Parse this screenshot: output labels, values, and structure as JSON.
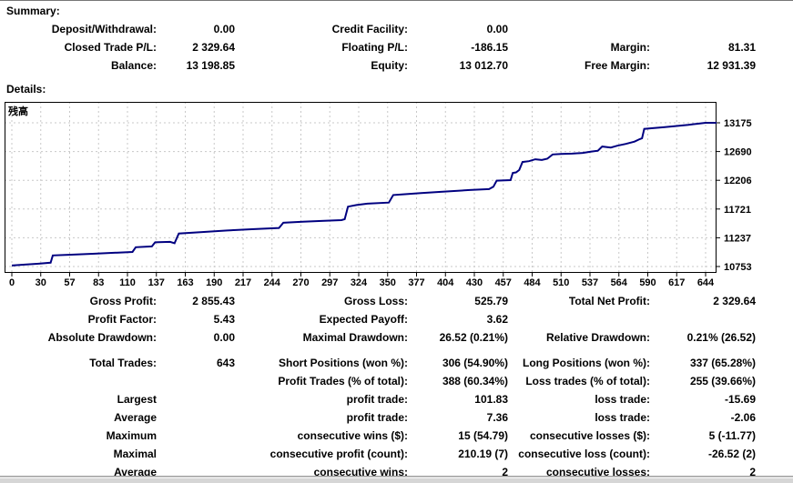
{
  "summary": {
    "heading": "Summary:",
    "rows": [
      {
        "l1": "Deposit/Withdrawal:",
        "v1": "0.00",
        "l2": "Credit Facility:",
        "v2": "0.00",
        "l3": "",
        "v3": ""
      },
      {
        "l1": "Closed Trade P/L:",
        "v1": "2 329.64",
        "l2": "Floating P/L:",
        "v2": "-186.15",
        "l3": "Margin:",
        "v3": "81.31"
      },
      {
        "l1": "Balance:",
        "v1": "13 198.85",
        "l2": "Equity:",
        "v2": "13 012.70",
        "l3": "Free Margin:",
        "v3": "12 931.39"
      }
    ]
  },
  "details": {
    "heading": "Details:",
    "rows": [
      {
        "l1": "Gross Profit:",
        "v1": "2 855.43",
        "l2": "Gross Loss:",
        "v2": "525.79",
        "l3": "Total Net Profit:",
        "v3": "2 329.64"
      },
      {
        "l1": "Profit Factor:",
        "v1": "5.43",
        "l2": "Expected Payoff:",
        "v2": "3.62",
        "l3": "",
        "v3": ""
      },
      {
        "l1": "Absolute Drawdown:",
        "v1": "0.00",
        "l2": "Maximal Drawdown:",
        "v2": "26.52 (0.21%)",
        "l3": "Relative Drawdown:",
        "v3": "0.21% (26.52)"
      },
      {
        "gap": true,
        "l1": "Total Trades:",
        "v1": "643",
        "l2": "Short Positions (won %):",
        "v2": "306 (54.90%)",
        "l3": "Long Positions (won %):",
        "v3": "337 (65.28%)"
      },
      {
        "l1": "",
        "v1": "",
        "l2": "Profit Trades (% of total):",
        "v2": "388 (60.34%)",
        "l3": "Loss trades (% of total):",
        "v3": "255 (39.66%)"
      },
      {
        "l1": "Largest",
        "v1": "",
        "l2": "profit trade:",
        "v2": "101.83",
        "l3": "loss trade:",
        "v3": "-15.69"
      },
      {
        "l1": "Average",
        "v1": "",
        "l2": "profit trade:",
        "v2": "7.36",
        "l3": "loss trade:",
        "v3": "-2.06"
      },
      {
        "l1": "Maximum",
        "v1": "",
        "l2": "consecutive wins ($):",
        "v2": "15 (54.79)",
        "l3": "consecutive losses ($):",
        "v3": "5 (-11.77)"
      },
      {
        "l1": "Maximal",
        "v1": "",
        "l2": "consecutive profit (count):",
        "v2": "210.19 (7)",
        "l3": "consecutive loss (count):",
        "v3": "-26.52 (2)"
      },
      {
        "l1": "Average",
        "v1": "",
        "l2": "consecutive wins:",
        "v2": "2",
        "l3": "consecutive losses:",
        "v3": "2"
      }
    ]
  },
  "chart_data": {
    "type": "line",
    "title": "残高",
    "legend": "残高",
    "xlabel": "",
    "ylabel": "",
    "x_ticks": [
      0,
      30,
      57,
      83,
      110,
      137,
      163,
      190,
      217,
      244,
      270,
      297,
      324,
      350,
      377,
      404,
      430,
      457,
      484,
      510,
      537,
      564,
      590,
      617,
      644
    ],
    "y_ticks": [
      13175,
      12690,
      12206,
      11721,
      11237,
      10753
    ],
    "xlim": [
      0,
      644
    ],
    "ylim": [
      10753,
      13175
    ],
    "grid": "dashed",
    "line_color": "#000080",
    "grid_color": "#c8c8c8",
    "axis_color": "#000000",
    "series": [
      {
        "name": "残高",
        "points": [
          [
            0,
            10770
          ],
          [
            12,
            10785
          ],
          [
            25,
            10800
          ],
          [
            36,
            10818
          ],
          [
            38,
            10940
          ],
          [
            55,
            10953
          ],
          [
            75,
            10968
          ],
          [
            95,
            10984
          ],
          [
            112,
            10998
          ],
          [
            115,
            11078
          ],
          [
            130,
            11092
          ],
          [
            133,
            11160
          ],
          [
            147,
            11168
          ],
          [
            151,
            11145
          ],
          [
            155,
            11310
          ],
          [
            175,
            11332
          ],
          [
            200,
            11360
          ],
          [
            225,
            11383
          ],
          [
            248,
            11403
          ],
          [
            252,
            11490
          ],
          [
            270,
            11508
          ],
          [
            290,
            11523
          ],
          [
            306,
            11535
          ],
          [
            309,
            11550
          ],
          [
            312,
            11762
          ],
          [
            320,
            11790
          ],
          [
            330,
            11812
          ],
          [
            350,
            11830
          ],
          [
            354,
            11958
          ],
          [
            365,
            11972
          ],
          [
            380,
            11990
          ],
          [
            400,
            12015
          ],
          [
            425,
            12042
          ],
          [
            443,
            12058
          ],
          [
            447,
            12098
          ],
          [
            450,
            12200
          ],
          [
            458,
            12205
          ],
          [
            463,
            12210
          ],
          [
            465,
            12330
          ],
          [
            468,
            12340
          ],
          [
            471,
            12380
          ],
          [
            474,
            12515
          ],
          [
            480,
            12528
          ],
          [
            486,
            12560
          ],
          [
            492,
            12548
          ],
          [
            497,
            12570
          ],
          [
            502,
            12642
          ],
          [
            510,
            12650
          ],
          [
            520,
            12655
          ],
          [
            530,
            12668
          ],
          [
            538,
            12690
          ],
          [
            544,
            12705
          ],
          [
            548,
            12775
          ],
          [
            556,
            12758
          ],
          [
            562,
            12788
          ],
          [
            570,
            12820
          ],
          [
            578,
            12858
          ],
          [
            583,
            12900
          ],
          [
            585,
            12915
          ],
          [
            587,
            13072
          ],
          [
            595,
            13085
          ],
          [
            605,
            13100
          ],
          [
            615,
            13118
          ],
          [
            628,
            13140
          ],
          [
            636,
            13158
          ],
          [
            644,
            13175
          ]
        ]
      }
    ]
  }
}
